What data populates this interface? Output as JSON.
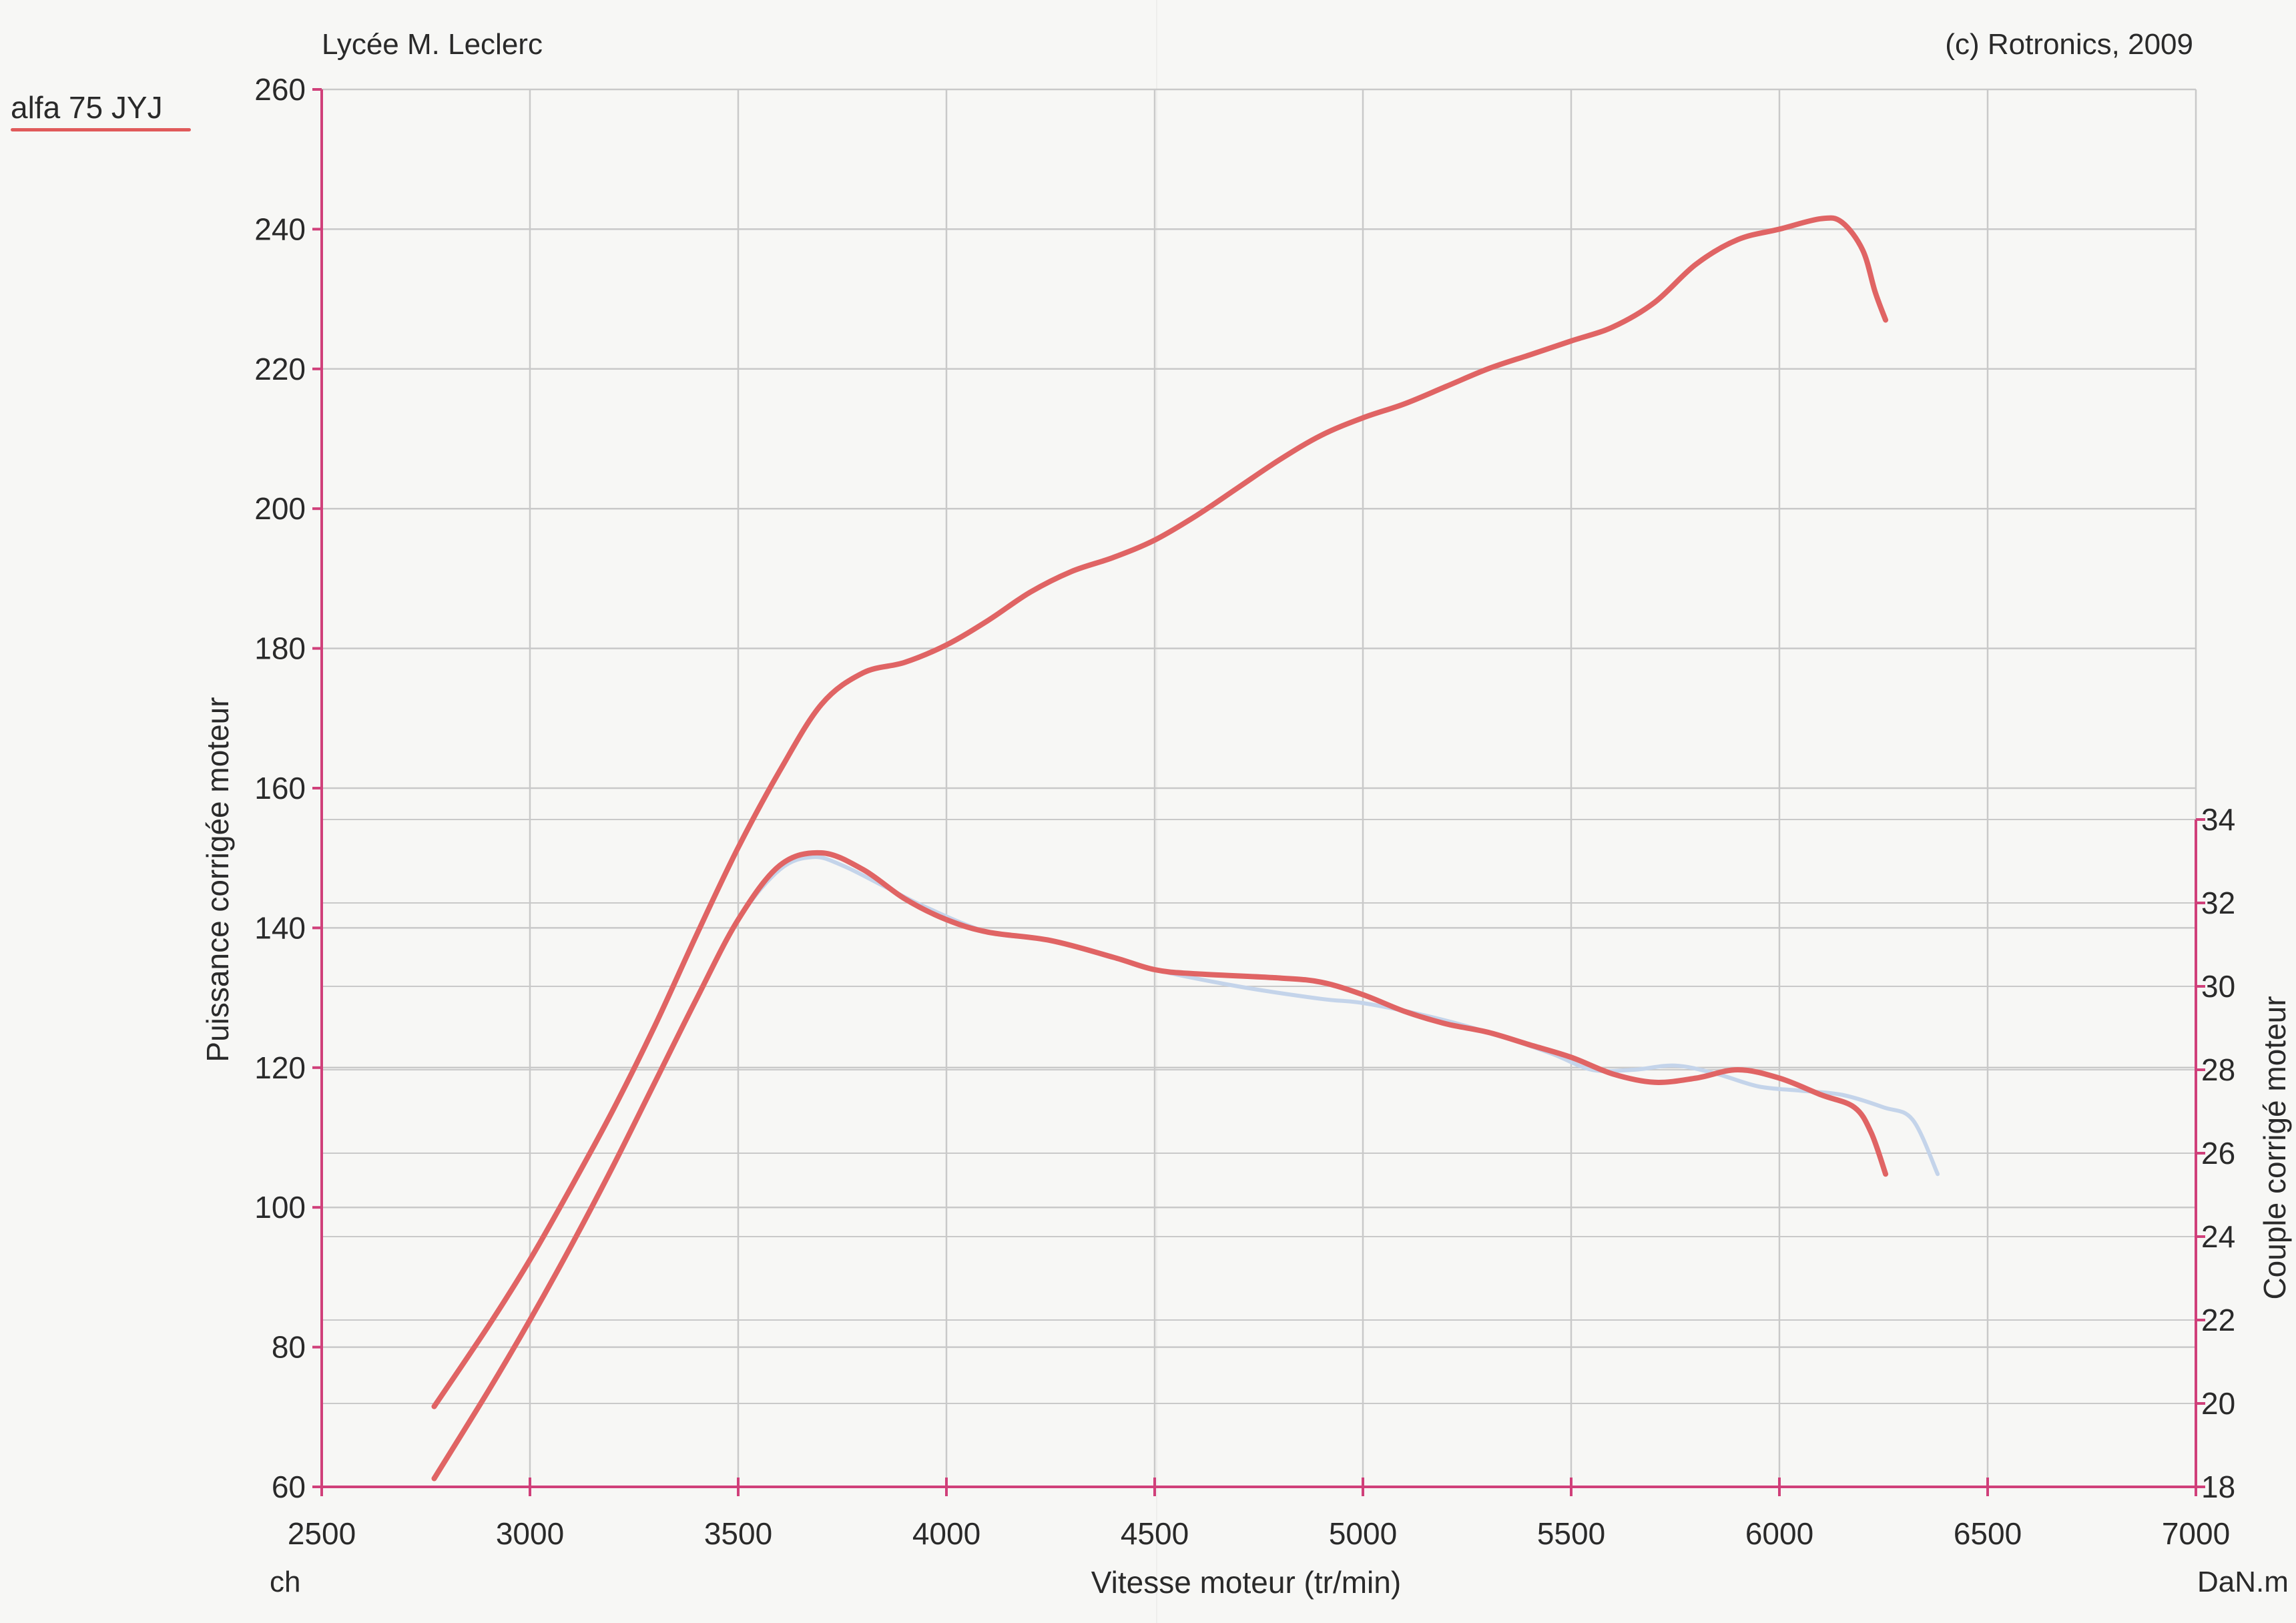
{
  "header": {
    "left": "Lycée M. Leclerc",
    "right": "(c) Rotronics, 2009"
  },
  "note": {
    "text": "alfa 75 JYJ",
    "color": "#e05a5a"
  },
  "units": {
    "left": "ch",
    "right": "DaN.m"
  },
  "colors": {
    "axis": "#d0407a",
    "grid": "#c9c9c9",
    "red_series": "#e06464",
    "blue_series": "#c4d4ea",
    "text": "#2a2a2a"
  },
  "chart_data": {
    "type": "line",
    "title": "",
    "xlabel": "Vitesse moteur (tr/min)",
    "ylabel": "Puissance corrigée moteur",
    "y2label": "Couple corrigé moteur",
    "xlim": [
      2500,
      7000
    ],
    "ylim": [
      60,
      260
    ],
    "y2lim": [
      18,
      34
    ],
    "xticks": [
      2500,
      3000,
      3500,
      4000,
      4500,
      5000,
      5500,
      6000,
      6500,
      7000
    ],
    "yticks": [
      60,
      80,
      100,
      120,
      140,
      160,
      180,
      200,
      220,
      240,
      260
    ],
    "y2ticks": [
      18,
      20,
      22,
      24,
      26,
      28,
      30,
      32,
      34
    ],
    "grid": true,
    "series": [
      {
        "axis": "left",
        "color": "#e06464",
        "x": [
          2770,
          2900,
          3000,
          3100,
          3200,
          3300,
          3400,
          3500,
          3600,
          3700,
          3800,
          3900,
          4000,
          4100,
          4200,
          4300,
          4400,
          4500,
          4600,
          4700,
          4800,
          4900,
          5000,
          5100,
          5200,
          5300,
          5400,
          5500,
          5600,
          5700,
          5800,
          5900,
          6000,
          6100,
          6150,
          6200,
          6230,
          6255
        ],
        "y": [
          71.5,
          83,
          92.5,
          103,
          114,
          126,
          139,
          151.5,
          162.5,
          172,
          176.5,
          178,
          180.5,
          184,
          188,
          191,
          193,
          195.5,
          199,
          203,
          207,
          210.5,
          213,
          215,
          217.5,
          220,
          222,
          224,
          226,
          229.5,
          235,
          238.5,
          240,
          241.5,
          241,
          237,
          231,
          227
        ]
      },
      {
        "axis": "right",
        "color": "#c4d4ea",
        "x": [
          2770,
          2900,
          3000,
          3100,
          3200,
          3300,
          3400,
          3500,
          3600,
          3680,
          3750,
          3850,
          3950,
          4100,
          4250,
          4400,
          4500,
          4700,
          4900,
          5000,
          5150,
          5300,
          5450,
          5550,
          5650,
          5750,
          5850,
          5950,
          6050,
          6150,
          6250,
          6320,
          6380
        ],
        "y": [
          18.2,
          20.3,
          22,
          23.8,
          25.7,
          27.7,
          29.7,
          31.6,
          32.8,
          33.1,
          32.9,
          32.4,
          31.9,
          31.3,
          31.1,
          30.7,
          30.4,
          30,
          29.7,
          29.6,
          29.3,
          28.9,
          28.4,
          28,
          28,
          28.1,
          27.9,
          27.6,
          27.5,
          27.4,
          27.1,
          26.8,
          25.5
        ]
      },
      {
        "axis": "right",
        "color": "#e06464",
        "x": [
          2770,
          2900,
          3000,
          3100,
          3200,
          3300,
          3400,
          3500,
          3600,
          3700,
          3800,
          3900,
          4000,
          4100,
          4250,
          4400,
          4500,
          4600,
          4800,
          4900,
          5000,
          5100,
          5200,
          5300,
          5400,
          5500,
          5600,
          5700,
          5800,
          5900,
          6000,
          6100,
          6180,
          6220,
          6255
        ],
        "y": [
          18.2,
          20.3,
          22,
          23.8,
          25.7,
          27.7,
          29.7,
          31.6,
          32.9,
          33.2,
          32.8,
          32.1,
          31.6,
          31.3,
          31.1,
          30.7,
          30.4,
          30.3,
          30.2,
          30.1,
          29.8,
          29.4,
          29.1,
          28.9,
          28.6,
          28.3,
          27.9,
          27.7,
          27.8,
          28,
          27.8,
          27.4,
          27.1,
          26.5,
          25.5
        ]
      }
    ]
  }
}
